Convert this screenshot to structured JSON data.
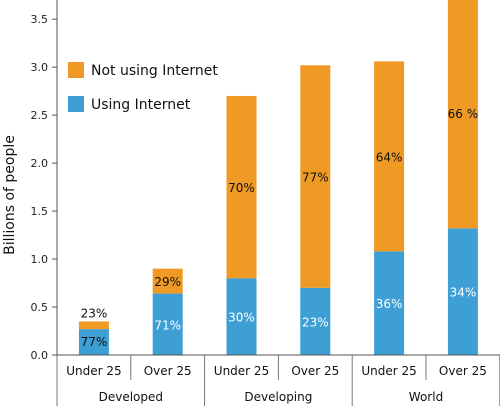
{
  "chart_data": {
    "type": "bar",
    "stacked": true,
    "ylabel": "Billions of people",
    "ylim": [
      0,
      3.7
    ],
    "yticks": [
      "0.0",
      "0.5",
      "1.0",
      "1.5",
      "2.0",
      "2.5",
      "3.0",
      "3.5"
    ],
    "ytick_values": [
      0,
      0.5,
      1.0,
      1.5,
      2.0,
      2.5,
      3.0,
      3.5
    ],
    "categories": [
      "Under 25",
      "Over 25",
      "Under 25",
      "Over 25",
      "Under 25",
      "Over 25"
    ],
    "groups": [
      {
        "label": "Developed",
        "span": [
          0,
          1
        ]
      },
      {
        "label": "Developing",
        "span": [
          2,
          3
        ]
      },
      {
        "label": "World",
        "span": [
          4,
          5
        ]
      }
    ],
    "series": [
      {
        "name": "Using Internet",
        "color": "#3d9fd4",
        "values": [
          0.27,
          0.64,
          0.8,
          0.7,
          1.08,
          1.32
        ],
        "labels": [
          "77%",
          "71%",
          "30%",
          "23%",
          "36%",
          "34%"
        ]
      },
      {
        "name": "Not using Internet",
        "color": "#ee9a25",
        "values": [
          0.08,
          0.26,
          1.9,
          2.32,
          1.98,
          2.4
        ],
        "labels": [
          "23%",
          "29%",
          "70%",
          "77%",
          "64%",
          "66 %"
        ]
      }
    ],
    "legend": {
      "position": "top-left",
      "order": [
        "Not using Internet",
        "Using Internet"
      ]
    },
    "grid": false
  }
}
